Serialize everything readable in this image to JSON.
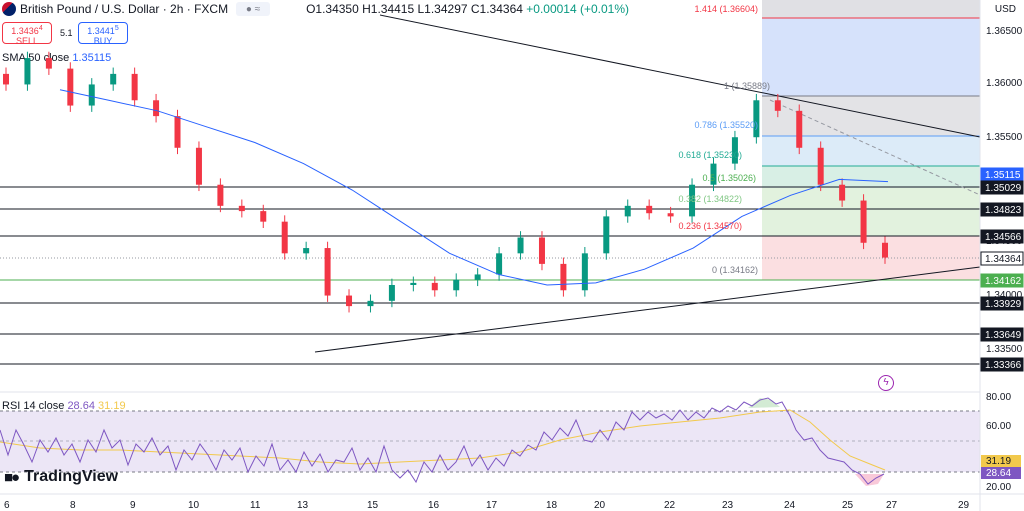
{
  "header": {
    "symbol": "British Pound / U.S. Dollar · 2h · FXCM",
    "ohlc": "O1.34350 H1.34415 L1.34297 C1.34364",
    "change": "+0.00014 (+0.01%)"
  },
  "trade": {
    "sell_price": "1.3436",
    "sell_sup": "4",
    "sell_label": "SELL",
    "spread": "5.1",
    "buy_price": "1.3441",
    "buy_sup": "5",
    "buy_label": "BUY"
  },
  "indicators": {
    "sma_label": "SMA 50 close",
    "sma_value": "1.35115",
    "rsi_label": "RSI 14 close",
    "rsi_value": "28.64",
    "rsi_ma_value": "31.19"
  },
  "currency": "USD",
  "brand": "TradingView",
  "fibonacci": [
    {
      "label": "1.414 (1.36604)",
      "color": "#f23645"
    },
    {
      "label": "1 (1.35889)",
      "color": "#787b86"
    },
    {
      "label": "0.786 (1.35520)",
      "color": "#5b9cf6"
    },
    {
      "label": "0.618 (1.35230)",
      "color": "#22ab94"
    },
    {
      "label": "0.5 (1.35026)",
      "color": "#4caf50"
    },
    {
      "label": "0.382 (1.34822)",
      "color": "#81c784"
    },
    {
      "label": "0.236 (1.34570)",
      "color": "#f23645"
    },
    {
      "label": "0 (1.34162)",
      "color": "#787b86"
    }
  ],
  "price_axis": [
    "1.36500",
    "1.36000",
    "1.35500",
    "1.35000",
    "1.34500",
    "1.34000",
    "1.33500"
  ],
  "price_badges": [
    {
      "label": "1.35115",
      "bg": "#2962ff"
    },
    {
      "label": "1.35029",
      "bg": "#131722"
    },
    {
      "label": "1.34823",
      "bg": "#131722"
    },
    {
      "label": "1.34566",
      "bg": "#131722"
    },
    {
      "label": "1.34364",
      "bg": "#ffffff"
    },
    {
      "label": "1.34162",
      "bg": "#4caf50"
    },
    {
      "label": "1.33929",
      "bg": "#131722"
    },
    {
      "label": "1.33649",
      "bg": "#131722"
    },
    {
      "label": "1.33366",
      "bg": "#131722"
    }
  ],
  "rsi_axis": [
    "80.00",
    "60.00",
    "20.00"
  ],
  "time_axis": [
    "6",
    "8",
    "9",
    "10",
    "11",
    "13",
    "15",
    "16",
    "17",
    "18",
    "20",
    "22",
    "23",
    "24",
    "25",
    "27",
    "29"
  ],
  "colors": {
    "up": "#089981",
    "down": "#f23645",
    "sma": "#2962ff",
    "rsi": "#7e57c2",
    "rsi_ma": "#f2c94c"
  },
  "chart_data": {
    "type": "candlestick",
    "ylim": [
      1.332,
      1.368
    ],
    "sma_50": [
      1.3595,
      1.3585,
      1.3575,
      1.356,
      1.3545,
      1.3525,
      1.35,
      1.347,
      1.344,
      1.342,
      1.341,
      1.3412,
      1.3425,
      1.3445,
      1.3475,
      1.3495,
      1.351,
      1.3508
    ],
    "closes": [
      1.36,
      1.3625,
      1.3615,
      1.358,
      1.36,
      1.361,
      1.3585,
      1.357,
      1.354,
      1.3505,
      1.3485,
      1.348,
      1.347,
      1.344,
      1.3445,
      1.34,
      1.339,
      1.3395,
      1.341,
      1.3412,
      1.3405,
      1.3415,
      1.342,
      1.344,
      1.3455,
      1.343,
      1.3405,
      1.344,
      1.3475,
      1.3485,
      1.3478,
      1.3475,
      1.3505,
      1.3525,
      1.355,
      1.3585,
      1.3575,
      1.354,
      1.3505,
      1.349,
      1.345,
      1.3436
    ]
  }
}
